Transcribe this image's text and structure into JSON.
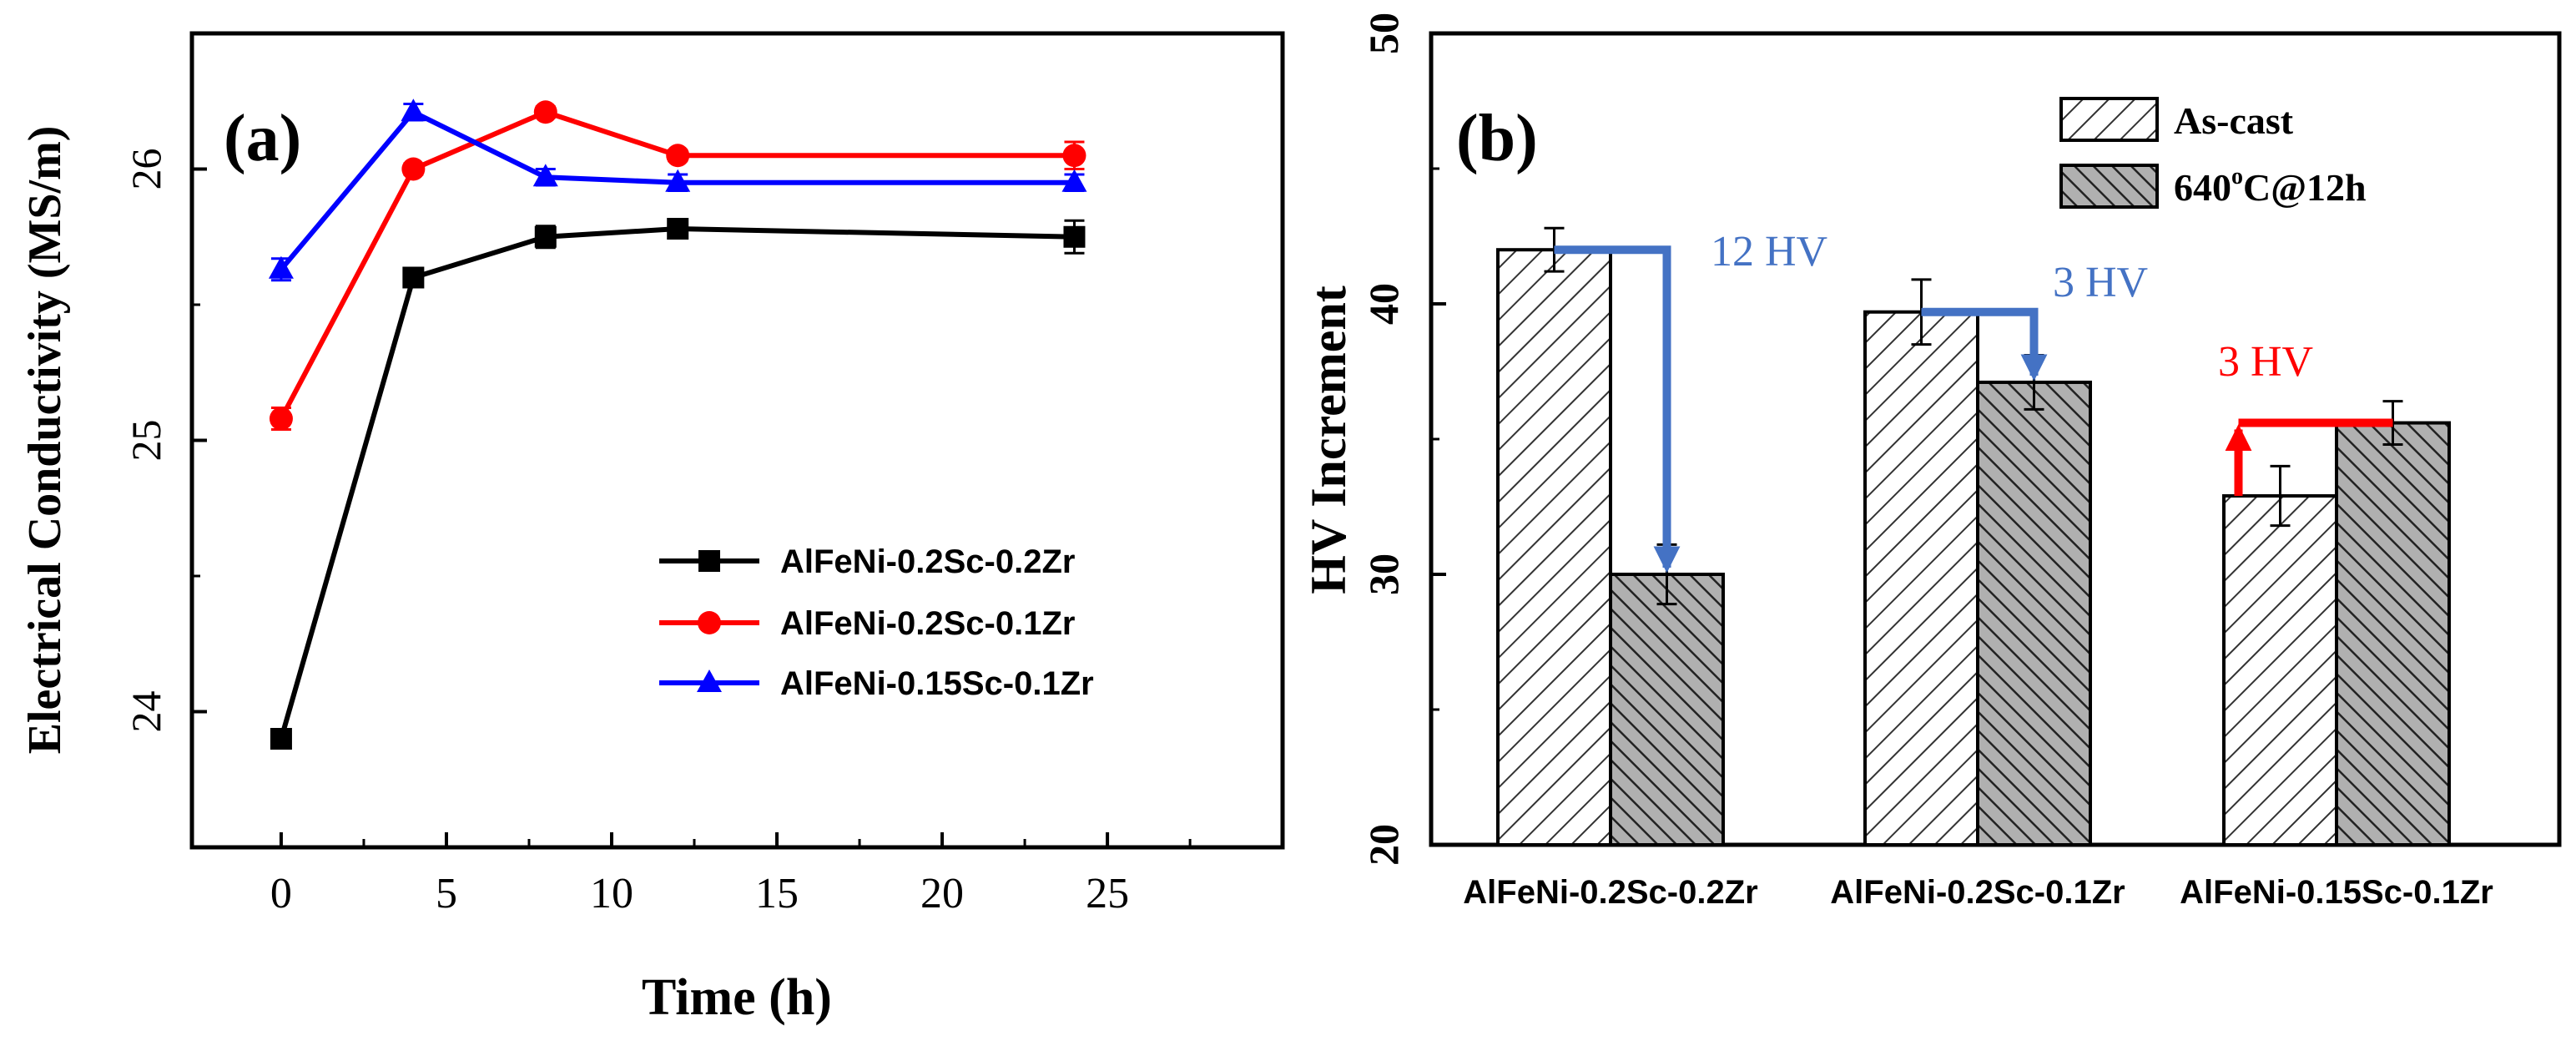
{
  "chart_data": [
    {
      "type": "line",
      "panel_label": "(a)",
      "xlabel": "Time (h)",
      "ylabel": "Electrical Conductivity (MS/m)",
      "xlim": [
        -2.7,
        30.3
      ],
      "ylim": [
        23.5,
        26.5
      ],
      "xticks": [
        "0",
        "5",
        "10",
        "15",
        "20",
        "25"
      ],
      "xtick_values": [
        0,
        5,
        10,
        15,
        20,
        25
      ],
      "yticks": [
        "24",
        "25",
        "26"
      ],
      "ytick_values": [
        24,
        25,
        26
      ],
      "legend_position": "lower-right",
      "series": [
        {
          "name": "AlFeNi-0.2Sc-0.2Zr",
          "color": "#000000",
          "marker": "square",
          "x": [
            0,
            4,
            8,
            12,
            24
          ],
          "y": [
            23.9,
            25.6,
            25.75,
            25.78,
            25.75
          ],
          "err": [
            0.03,
            0.02,
            0.04,
            0.03,
            0.06
          ]
        },
        {
          "name": "AlFeNi-0.2Sc-0.1Zr",
          "color": "#ff0000",
          "marker": "circle",
          "x": [
            0,
            4,
            8,
            12,
            24
          ],
          "y": [
            25.08,
            26.0,
            26.21,
            26.05,
            26.05
          ],
          "err": [
            0.04,
            0.02,
            0.02,
            0.02,
            0.05
          ]
        },
        {
          "name": "AlFeNi-0.15Sc-0.1Zr",
          "color": "#0000ff",
          "marker": "triangle",
          "x": [
            0,
            4,
            8,
            12,
            24
          ],
          "y": [
            25.63,
            26.21,
            25.97,
            25.95,
            25.95
          ],
          "err": [
            0.04,
            0.03,
            0.03,
            0.03,
            0.03
          ]
        }
      ]
    },
    {
      "type": "bar",
      "panel_label": "(b)",
      "ylabel": "HV Increment",
      "xlabel": "",
      "ylim": [
        20,
        50
      ],
      "yticks": [
        "20",
        "30",
        "40",
        "50"
      ],
      "ytick_values": [
        20,
        30,
        40,
        50
      ],
      "categories": [
        "AlFeNi-0.2Sc-0.2Zr",
        "AlFeNi-0.2Sc-0.1Zr",
        "AlFeNi-0.15Sc-0.1Zr"
      ],
      "legend_position": "top-right",
      "series": [
        {
          "name": "As-cast",
          "values": [
            42.0,
            39.7,
            32.9
          ],
          "err": [
            0.8,
            1.2,
            1.1
          ],
          "fill": "hatch-light"
        },
        {
          "name": "640ºC@12h",
          "name_base": "640",
          "name_sup": "o",
          "name_rest": "C@12h",
          "values": [
            30.0,
            37.1,
            35.6
          ],
          "err": [
            1.1,
            1.0,
            0.8
          ],
          "fill": "hatch-dark"
        }
      ],
      "annotations": [
        {
          "text": "12 HV",
          "color": "#4472c4",
          "category": 0,
          "direction": "down",
          "from": 42.0,
          "to": 30.0
        },
        {
          "text": "3 HV",
          "color": "#4472c4",
          "category": 1,
          "direction": "down",
          "from": 39.7,
          "to": 37.1
        },
        {
          "text": "3 HV",
          "color": "#ff0000",
          "category": 2,
          "direction": "up",
          "from": 32.9,
          "to": 35.6
        }
      ]
    }
  ]
}
